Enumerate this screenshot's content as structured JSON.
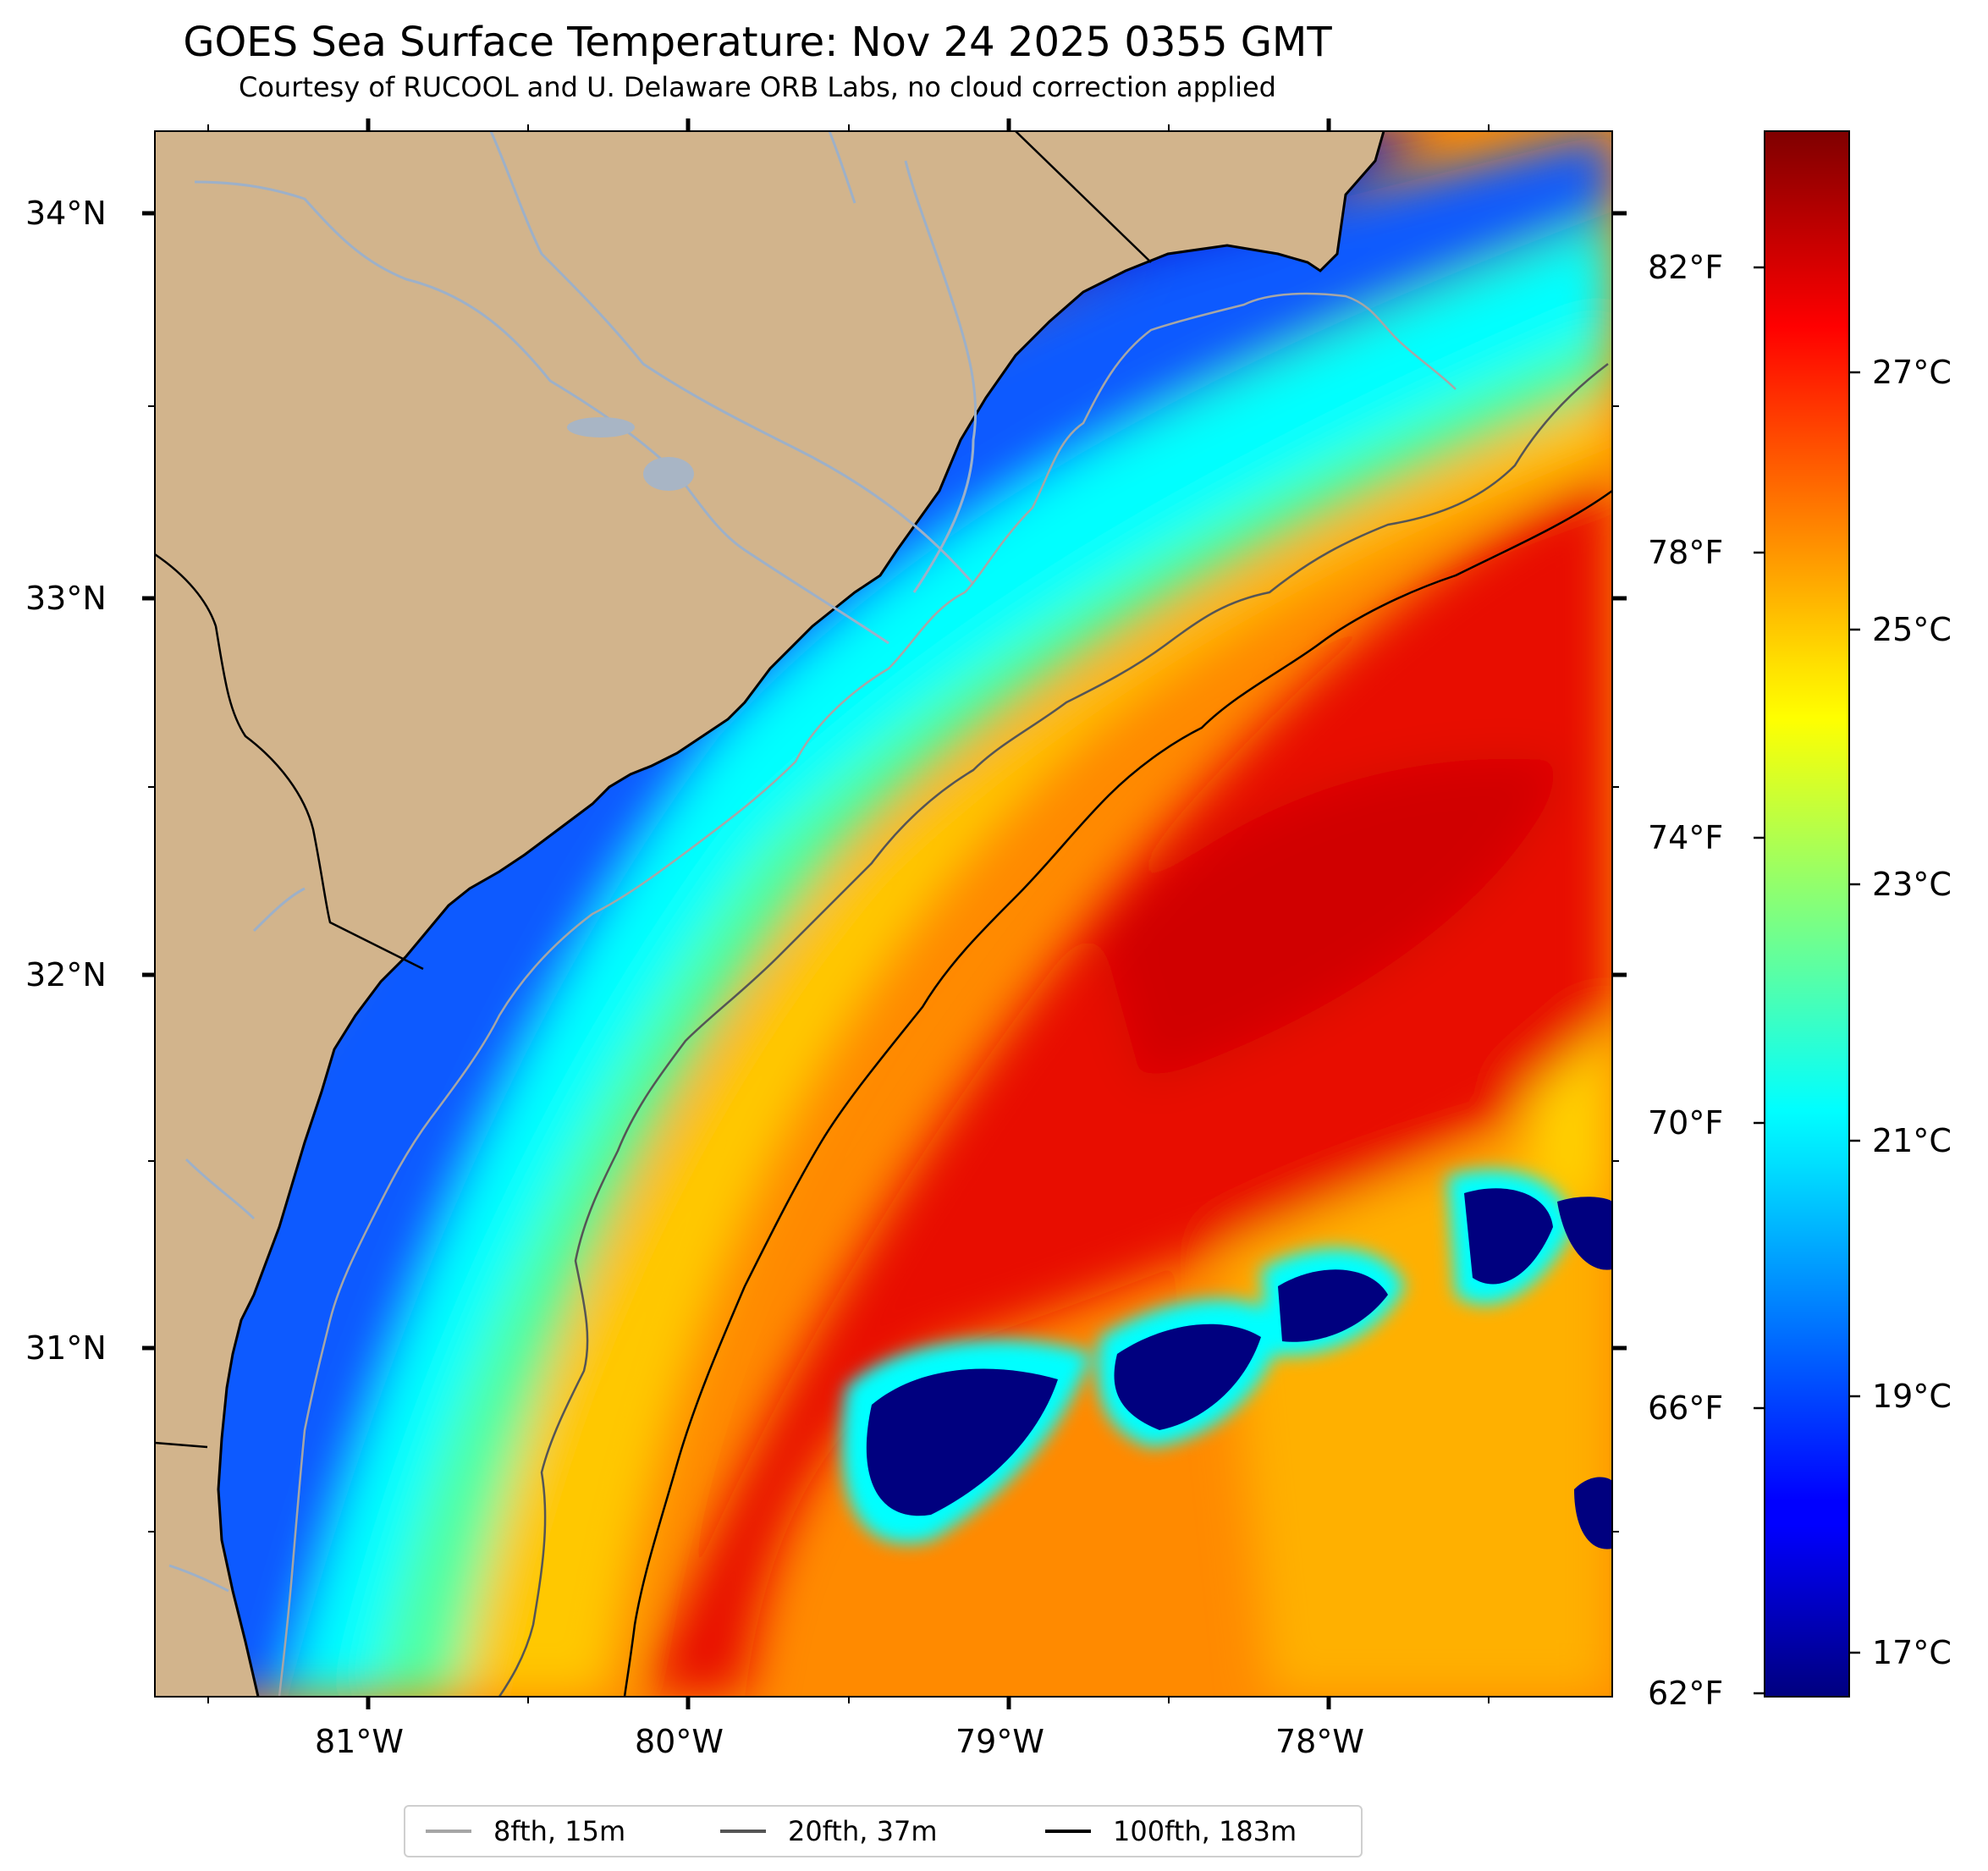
{
  "title": "GOES Sea Surface Temperature: Nov 24 2025 0355 GMT",
  "subtitle": "Courtesy of RUCOOL and U. Delaware ORB Labs, no cloud correction applied",
  "map": {
    "lon_range": [
      -81.67,
      -77.1
    ],
    "lat_range": [
      30.1,
      34.22
    ],
    "land_color": "#D2B48C",
    "ocean_colormap": "jet",
    "lon_ticks": [
      "81°W",
      "80°W",
      "79°W",
      "78°W"
    ],
    "lat_ticks": [
      "34°N",
      "33°N",
      "32°N",
      "31°N"
    ]
  },
  "colorbar": {
    "range_c": [
      16.7,
      28.9
    ],
    "celsius_ticks": [
      "27°C",
      "25°C",
      "23°C",
      "21°C",
      "19°C",
      "17°C"
    ],
    "fahrenheit_ticks": [
      "82°F",
      "78°F",
      "74°F",
      "70°F",
      "66°F",
      "62°F"
    ]
  },
  "legend": {
    "items": [
      {
        "label": "8fth, 15m",
        "color": "#a6a6a6"
      },
      {
        "label": "20fth, 37m",
        "color": "#555555"
      },
      {
        "label": "100fth, 183m",
        "color": "#000000"
      }
    ]
  }
}
